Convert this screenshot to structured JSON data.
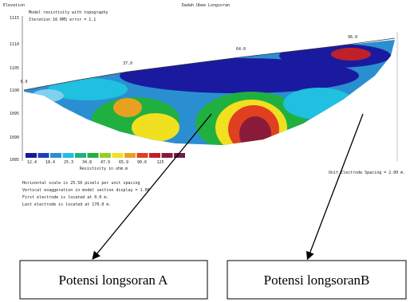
{
  "figure": {
    "header_left": "Elevation",
    "header_center": "Dadah Ubee Longsoran",
    "subtitle": "Model resistivity with topography",
    "iteration": "Iteration 16 RMS error = 1.1",
    "elevation_labels": [
      "1115",
      "1110",
      "1105",
      "1100",
      "1095",
      "1090",
      "1085"
    ],
    "distance_labels": [
      "0.0",
      "37.0",
      "64.0",
      "96.0"
    ],
    "legend_values": [
      "12.4",
      "18.4",
      "25.3",
      "34.8",
      "47.9",
      "65.9",
      "90.6",
      "125"
    ],
    "legend_title": "Resistivity in ohm.m",
    "electrode_spacing": "Unit Electrode Spacing = 2.00 m.",
    "notes": [
      "Horizontal scale is 25.56 pixels per unit spacing",
      "Vertical exaggeration in model section display = 1.00",
      "First electrode is located at 0.0 m.",
      "Last electrode is located at 170.0 m."
    ]
  },
  "callouts": [
    "Potensi longsoran A",
    "Potensi longsoranB"
  ]
}
